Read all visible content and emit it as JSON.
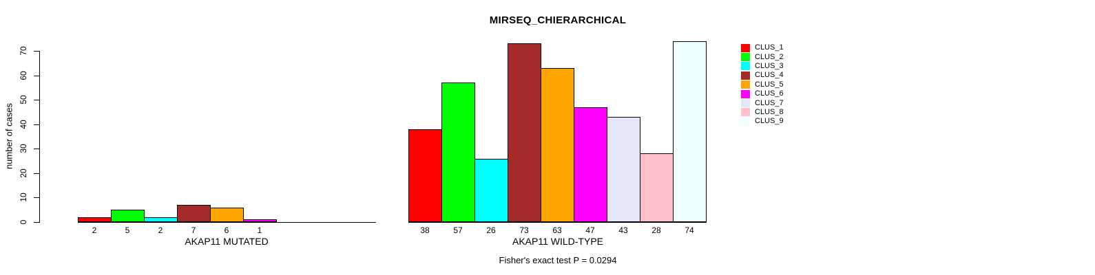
{
  "chart_data": {
    "type": "bar",
    "title": "MIRSEQ_CHIERARCHICAL",
    "ylabel": "number of cases",
    "subtitle": "Fisher's exact test P = 0.0294",
    "ylim": [
      0,
      74
    ],
    "yticks": [
      0,
      10,
      20,
      30,
      40,
      50,
      60,
      70
    ],
    "grid": false,
    "legend_position": "right",
    "clusters": [
      {
        "label": "CLUS_1",
        "color": "#FF0000"
      },
      {
        "label": "CLUS_2",
        "color": "#00FF00"
      },
      {
        "label": "CLUS_3",
        "color": "#00FFFF"
      },
      {
        "label": "CLUS_4",
        "color": "#A52A2A"
      },
      {
        "label": "CLUS_5",
        "color": "#FFA500"
      },
      {
        "label": "CLUS_6",
        "color": "#FF00FF"
      },
      {
        "label": "CLUS_7",
        "color": "#E6E6FA"
      },
      {
        "label": "CLUS_8",
        "color": "#FFC0CB"
      },
      {
        "label": "CLUS_9",
        "color": "#F0FFFF"
      }
    ],
    "groups": [
      {
        "xlabel": "AKAP11 MUTATED",
        "values": [
          2,
          5,
          2,
          7,
          6,
          1,
          0,
          0,
          0
        ],
        "bar_labels": [
          "2",
          "5",
          "2",
          "7",
          "6",
          "1",
          "",
          "",
          ""
        ]
      },
      {
        "xlabel": "AKAP11 WILD-TYPE",
        "values": [
          38,
          57,
          26,
          73,
          63,
          47,
          43,
          28,
          74
        ],
        "bar_labels": [
          "38",
          "57",
          "26",
          "73",
          "63",
          "47",
          "43",
          "28",
          "74"
        ]
      }
    ]
  }
}
